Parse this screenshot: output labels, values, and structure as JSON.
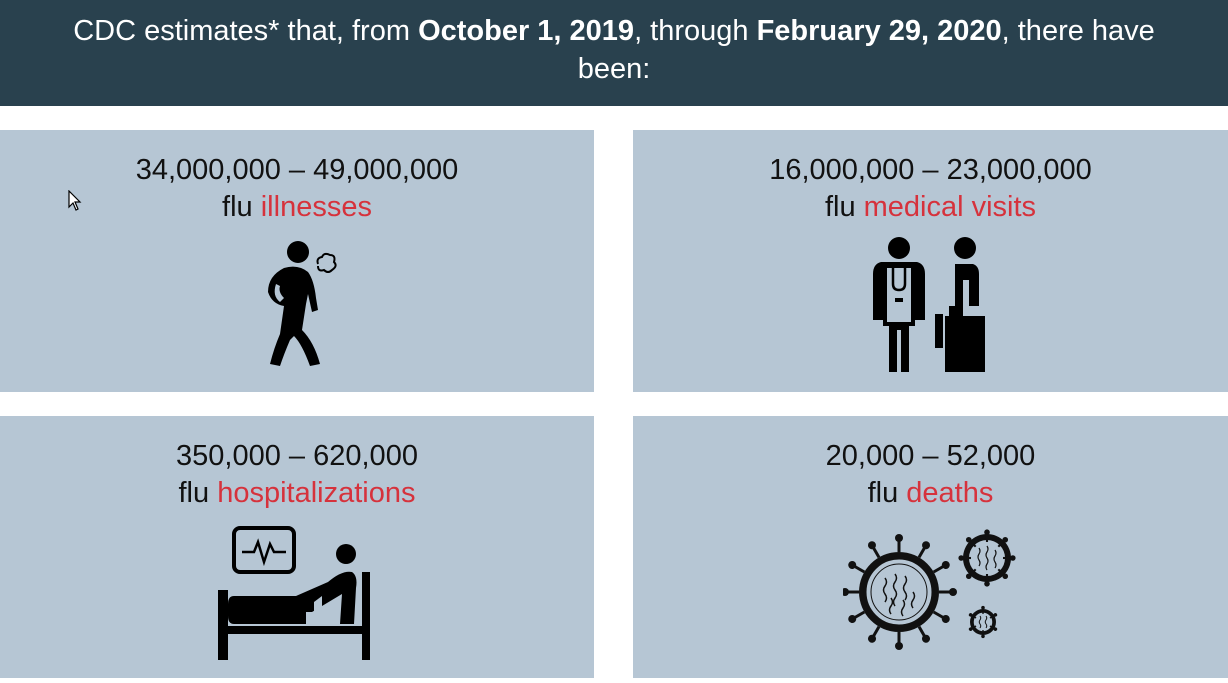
{
  "banner": {
    "prefix": "CDC estimates* that, from ",
    "start_date": "October 1, 2019",
    "middle": ", through ",
    "end_date": "February 29, 2020",
    "suffix": ", there have been:"
  },
  "cards": [
    {
      "range": "34,000,000 – 49,000,000",
      "prefix": "flu ",
      "highlight": "illnesses",
      "icon": "sick-person-icon"
    },
    {
      "range": "16,000,000 – 23,000,000",
      "prefix": "flu ",
      "highlight": "medical visits",
      "icon": "doctor-patient-icon"
    },
    {
      "range": "350,000 – 620,000",
      "prefix": "flu ",
      "highlight": "hospitalizations",
      "icon": "hospital-bed-icon"
    },
    {
      "range": "20,000 – 52,000",
      "prefix": "flu ",
      "highlight": "deaths",
      "icon": "virus-icon"
    }
  ],
  "colors": {
    "banner_bg": "#29414e",
    "card_bg": "#b6c6d4",
    "highlight": "#d6323c"
  }
}
